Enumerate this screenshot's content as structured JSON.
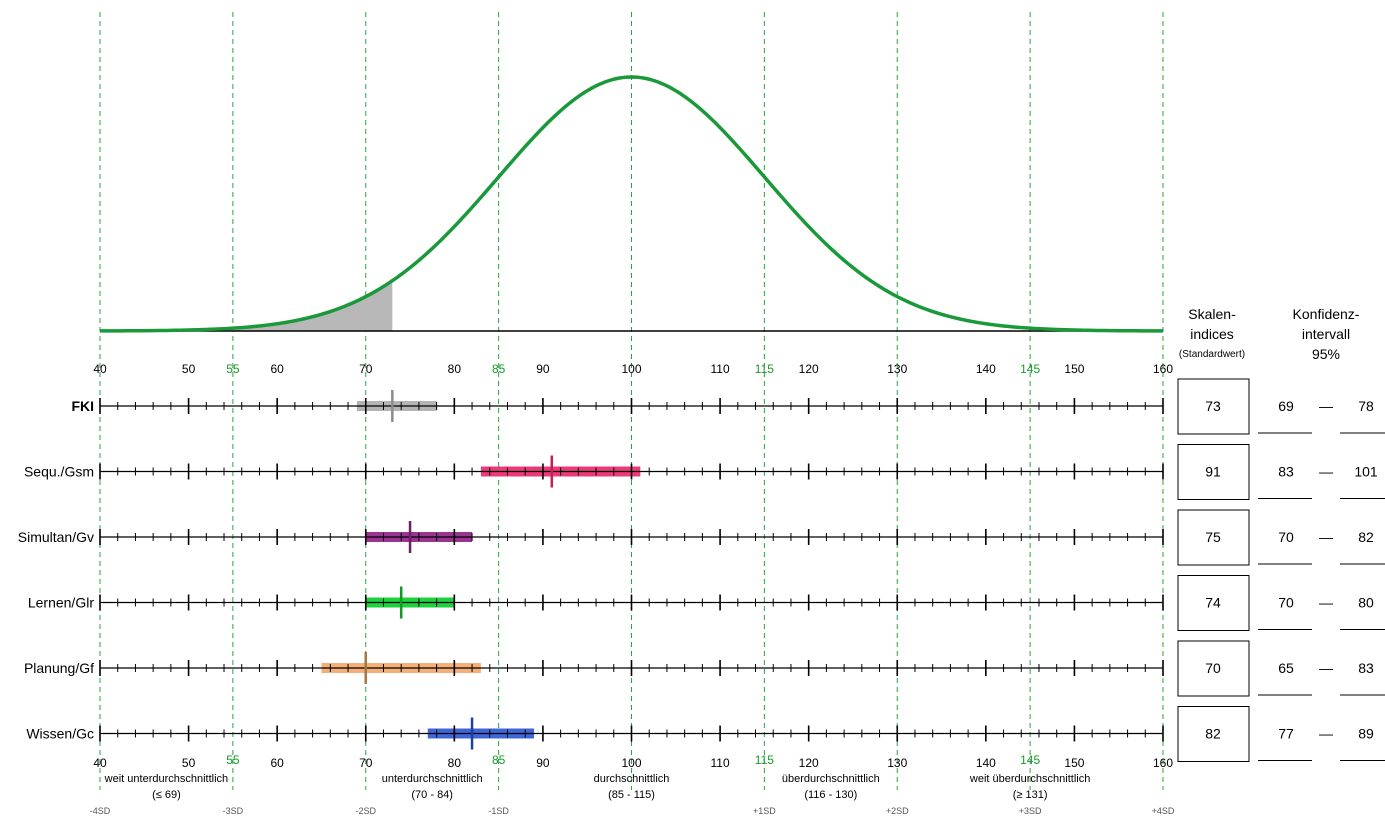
{
  "chart_data": {
    "type": "normal-distribution-profile",
    "distribution": {
      "mean": 100,
      "sd": 15,
      "shaded_range": [
        40,
        73
      ]
    },
    "axis": {
      "min": 40,
      "max": 160,
      "tick_labels": [
        {
          "value": 40,
          "label": "40",
          "highlight": false
        },
        {
          "value": 50,
          "label": "50",
          "highlight": false
        },
        {
          "value": 55,
          "label": "55",
          "highlight": true
        },
        {
          "value": 60,
          "label": "60",
          "highlight": false
        },
        {
          "value": 70,
          "label": "70",
          "highlight": false
        },
        {
          "value": 80,
          "label": "80",
          "highlight": false
        },
        {
          "value": 85,
          "label": "85",
          "highlight": true
        },
        {
          "value": 90,
          "label": "90",
          "highlight": false
        },
        {
          "value": 100,
          "label": "100",
          "highlight": false
        },
        {
          "value": 110,
          "label": "110",
          "highlight": false
        },
        {
          "value": 115,
          "label": "115",
          "highlight": true
        },
        {
          "value": 120,
          "label": "120",
          "highlight": false
        },
        {
          "value": 130,
          "label": "130",
          "highlight": false
        },
        {
          "value": 140,
          "label": "140",
          "highlight": false
        },
        {
          "value": 145,
          "label": "145",
          "highlight": true
        },
        {
          "value": 150,
          "label": "150",
          "highlight": false
        },
        {
          "value": 160,
          "label": "160",
          "highlight": false
        }
      ],
      "dashed_lines": [
        40,
        55,
        70,
        85,
        100,
        115,
        130,
        145,
        160
      ],
      "sd_labels": [
        {
          "value": 40,
          "label": "-4SD"
        },
        {
          "value": 55,
          "label": "-3SD"
        },
        {
          "value": 70,
          "label": "-2SD"
        },
        {
          "value": 85,
          "label": "-1SD"
        },
        {
          "value": 115,
          "label": "+1SD"
        },
        {
          "value": 130,
          "label": "+2SD"
        },
        {
          "value": 145,
          "label": "+3SD"
        },
        {
          "value": 160,
          "label": "+4SD"
        }
      ],
      "categories": [
        {
          "center": 47.5,
          "name": "weit unterdurchschnittlich",
          "range": "(≤ 69)"
        },
        {
          "center": 77.5,
          "name": "unterdurchschnittlich",
          "range": "(70 - 84)"
        },
        {
          "center": 100,
          "name": "durchschnittlich",
          "range": "(85 - 115)"
        },
        {
          "center": 122.5,
          "name": "überdurchschnittlich",
          "range": "(116 - 130)"
        },
        {
          "center": 145,
          "name": "weit überdurchschnittlich",
          "range": "(≥ 131)"
        }
      ]
    },
    "headers": {
      "score_line1": "Skalen-",
      "score_line2": "indices",
      "score_line3": "(Standardwert)",
      "ci_line1": "Konfidenz-",
      "ci_line2": "intervall",
      "ci_line3": "95%"
    },
    "series": [
      {
        "name": "FKI",
        "bold": true,
        "score": "73",
        "ci_low": "69",
        "ci_high": "78",
        "value": 73,
        "low": 69,
        "high": 78,
        "color": "#b4b4b4",
        "marker": "#8c8c8c"
      },
      {
        "name": "Sequ./Gsm",
        "bold": false,
        "score": "91",
        "ci_low": "83",
        "ci_high": "101",
        "value": 91,
        "low": 83,
        "high": 101,
        "color": "#ec3a78",
        "marker": "#c81e5a"
      },
      {
        "name": "Simultan/Gv",
        "bold": false,
        "score": "75",
        "ci_low": "70",
        "ci_high": "82",
        "value": 75,
        "low": 70,
        "high": 82,
        "color": "#99348f",
        "marker": "#6e1e6a"
      },
      {
        "name": "Lernen/Glr",
        "bold": false,
        "score": "74",
        "ci_low": "70",
        "ci_high": "80",
        "value": 74,
        "low": 70,
        "high": 80,
        "color": "#1ed23c",
        "marker": "#0f9a28"
      },
      {
        "name": "Planung/Gf",
        "bold": false,
        "score": "70",
        "ci_low": "65",
        "ci_high": "83",
        "value": 70,
        "low": 65,
        "high": 83,
        "color": "#f5b07a",
        "marker": "#a07840"
      },
      {
        "name": "Wissen/Gc",
        "bold": false,
        "score": "82",
        "ci_low": "77",
        "ci_high": "89",
        "value": 82,
        "low": 77,
        "high": 89,
        "color": "#3f66d6",
        "marker": "#1e3ea8"
      }
    ],
    "ci_separator": "—"
  }
}
